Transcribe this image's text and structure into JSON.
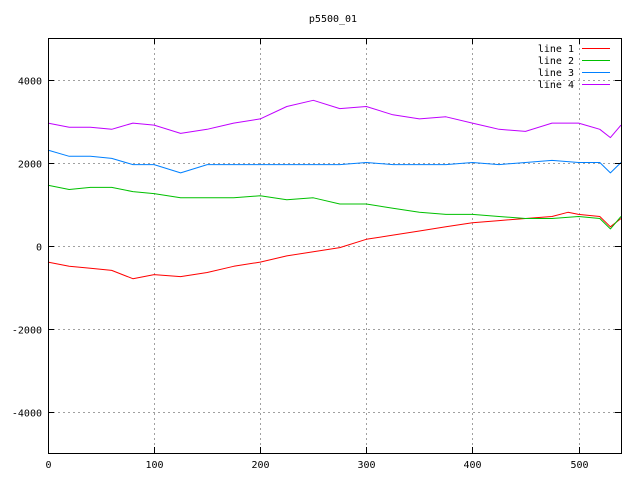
{
  "chart_data": {
    "type": "line",
    "title": "p5500_01",
    "xlabel": "",
    "ylabel": "",
    "xlim": [
      0,
      540
    ],
    "ylim": [
      -5000,
      5000
    ],
    "x_ticks": [
      0,
      100,
      200,
      300,
      400,
      500
    ],
    "y_ticks": [
      -4000,
      -2000,
      0,
      2000,
      4000
    ],
    "grid": true,
    "legend_position": "top-right",
    "series": [
      {
        "name": "line 1",
        "color": "#ff0000",
        "x": [
          0,
          20,
          40,
          60,
          80,
          100,
          125,
          150,
          175,
          200,
          225,
          250,
          275,
          300,
          325,
          350,
          375,
          400,
          425,
          450,
          475,
          490,
          500,
          520,
          530,
          540
        ],
        "values": [
          -400,
          -500,
          -550,
          -600,
          -800,
          -700,
          -750,
          -650,
          -500,
          -400,
          -250,
          -150,
          -50,
          150,
          250,
          350,
          450,
          550,
          600,
          650,
          700,
          800,
          750,
          700,
          450,
          650
        ]
      },
      {
        "name": "line 2",
        "color": "#00c000",
        "x": [
          0,
          20,
          40,
          60,
          80,
          100,
          125,
          150,
          175,
          200,
          225,
          250,
          275,
          300,
          325,
          350,
          375,
          400,
          425,
          450,
          475,
          500,
          520,
          530,
          540
        ],
        "values": [
          1450,
          1350,
          1400,
          1400,
          1300,
          1250,
          1150,
          1150,
          1150,
          1200,
          1100,
          1150,
          1000,
          1000,
          900,
          800,
          750,
          750,
          700,
          650,
          650,
          700,
          650,
          400,
          700
        ]
      },
      {
        "name": "line 3",
        "color": "#0080ff",
        "x": [
          0,
          20,
          40,
          60,
          80,
          100,
          125,
          150,
          175,
          200,
          225,
          250,
          275,
          300,
          325,
          350,
          375,
          400,
          425,
          450,
          475,
          500,
          520,
          530,
          540
        ],
        "values": [
          2300,
          2150,
          2150,
          2100,
          1950,
          1950,
          1750,
          1950,
          1950,
          1950,
          1950,
          1950,
          1950,
          2000,
          1950,
          1950,
          1950,
          2000,
          1950,
          2000,
          2050,
          2000,
          2000,
          1750,
          2000
        ]
      },
      {
        "name": "line 4",
        "color": "#c000ff",
        "x": [
          0,
          20,
          40,
          60,
          80,
          100,
          125,
          150,
          175,
          200,
          225,
          250,
          275,
          300,
          325,
          350,
          375,
          400,
          425,
          450,
          475,
          500,
          520,
          530,
          540
        ],
        "values": [
          2950,
          2850,
          2850,
          2800,
          2950,
          2900,
          2700,
          2800,
          2950,
          3050,
          3350,
          3500,
          3300,
          3350,
          3150,
          3050,
          3100,
          2950,
          2800,
          2750,
          2950,
          2950,
          2800,
          2600,
          2900
        ]
      }
    ]
  }
}
